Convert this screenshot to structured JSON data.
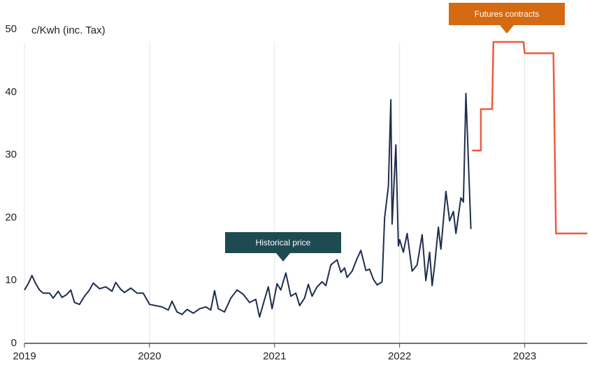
{
  "chart_data": {
    "type": "line",
    "y_label": "c/Kwh (inc. Tax)",
    "xlim": [
      2019,
      2023.5
    ],
    "xticks": [
      2019,
      2020,
      2021,
      2022,
      2023
    ],
    "ylim": [
      0,
      50
    ],
    "yticks": [
      0,
      10,
      20,
      30,
      40,
      50
    ],
    "grid": "x",
    "series": [
      {
        "name": "Historical price",
        "color": "#1f2d4e",
        "callout_color": "#1e4a52",
        "x": [
          2019.0,
          2019.03,
          2019.06,
          2019.09,
          2019.12,
          2019.15,
          2019.2,
          2019.23,
          2019.27,
          2019.3,
          2019.34,
          2019.37,
          2019.4,
          2019.44,
          2019.48,
          2019.52,
          2019.55,
          2019.6,
          2019.65,
          2019.7,
          2019.73,
          2019.77,
          2019.8,
          2019.85,
          2019.9,
          2019.95,
          2020.0,
          2020.05,
          2020.1,
          2020.15,
          2020.18,
          2020.22,
          2020.26,
          2020.3,
          2020.35,
          2020.4,
          2020.45,
          2020.49,
          2020.52,
          2020.55,
          2020.6,
          2020.65,
          2020.7,
          2020.75,
          2020.8,
          2020.85,
          2020.88,
          2020.92,
          2020.95,
          2020.98,
          2021.02,
          2021.05,
          2021.09,
          2021.13,
          2021.17,
          2021.2,
          2021.24,
          2021.27,
          2021.3,
          2021.34,
          2021.38,
          2021.41,
          2021.45,
          2021.5,
          2021.53,
          2021.56,
          2021.58,
          2021.62,
          2021.66,
          2021.69,
          2021.73,
          2021.76,
          2021.79,
          2021.82,
          2021.86,
          2021.88,
          2021.91,
          2021.93,
          2021.94,
          2021.97,
          2021.99,
          2022.0,
          2022.03,
          2022.06,
          2022.1,
          2022.14,
          2022.18,
          2022.21,
          2022.24,
          2022.26,
          2022.28,
          2022.31,
          2022.33,
          2022.37,
          2022.4,
          2022.43,
          2022.45,
          2022.49,
          2022.51,
          2022.53,
          2022.57
        ],
        "values": [
          8.5,
          9.5,
          10.8,
          9.5,
          8.5,
          8.0,
          8.0,
          7.2,
          8.3,
          7.3,
          7.8,
          8.5,
          6.5,
          6.2,
          7.5,
          8.5,
          9.6,
          8.7,
          9.0,
          8.3,
          9.7,
          8.6,
          8.1,
          8.8,
          8.0,
          8.0,
          6.2,
          6.0,
          5.8,
          5.3,
          6.7,
          5.0,
          4.6,
          5.4,
          4.8,
          5.5,
          5.8,
          5.3,
          8.4,
          5.5,
          5.0,
          7.2,
          8.5,
          7.8,
          6.5,
          7.0,
          4.2,
          7.0,
          9.0,
          5.5,
          9.5,
          8.5,
          11.2,
          7.5,
          8.0,
          6.0,
          7.2,
          9.4,
          7.5,
          9.0,
          9.8,
          9.2,
          12.5,
          13.3,
          11.3,
          12.0,
          10.5,
          11.5,
          13.5,
          14.8,
          11.6,
          11.8,
          10.2,
          9.3,
          9.8,
          20.0,
          25.0,
          38.8,
          19.0,
          31.6,
          15.5,
          16.5,
          14.5,
          17.5,
          11.5,
          12.5,
          17.3,
          10.0,
          14.5,
          9.2,
          12.5,
          18.5,
          15.0,
          24.2,
          19.5,
          21.0,
          17.5,
          23.2,
          22.5,
          39.8,
          18.2
        ]
      },
      {
        "name": "Futures contracts",
        "color": "#f05a3c",
        "callout_color": "#d46a12",
        "x": [
          2022.58,
          2022.65,
          2022.65,
          2022.74,
          2022.75,
          2022.99,
          2023.0,
          2023.23,
          2023.25,
          2023.5
        ],
        "values": [
          30.7,
          30.7,
          37.3,
          37.3,
          48.0,
          48.0,
          46.2,
          46.2,
          17.5,
          17.5
        ]
      }
    ]
  }
}
